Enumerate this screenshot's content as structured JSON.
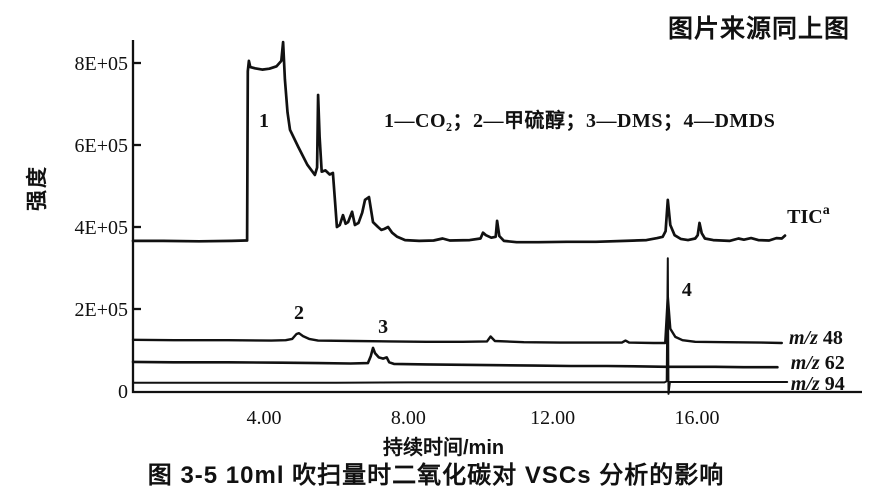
{
  "page": {
    "source_note": "图片来源同上图",
    "caption": "图 3-5  10ml 吹扫量时二氧化碳对 VSCs 分析的影响"
  },
  "chart_data": {
    "type": "line",
    "title": "图 3-5 10ml 吹扫量时二氧化碳对 VSCs 分析的影响",
    "xlabel": "持续时间/min",
    "ylabel": "强度",
    "x_unit": "min",
    "intensity_unit": "1E+05",
    "xlim": [
      0.37,
      20.57
    ],
    "ylim_in_1e5": [
      -0.1,
      8.8
    ],
    "grid": false,
    "legend_position": "top-center-inside",
    "legend_text": "1—CO₂；2—甲硫醇；3—DMS；4—DMDS",
    "legend_items": [
      {
        "number": "1",
        "compound": "CO₂"
      },
      {
        "number": "2",
        "compound": "甲硫醇"
      },
      {
        "number": "3",
        "compound": "DMS"
      },
      {
        "number": "4",
        "compound": "DMDS"
      }
    ],
    "y_ticks": [
      {
        "v": 0,
        "label": "0"
      },
      {
        "v": 2,
        "label": "2E+05"
      },
      {
        "v": 4,
        "label": "4E+05"
      },
      {
        "v": 6,
        "label": "6E+05"
      },
      {
        "v": 8,
        "label": "8E+05"
      }
    ],
    "x_ticks": [
      {
        "t": 4,
        "label": "4.00"
      },
      {
        "t": 8,
        "label": "8.00"
      },
      {
        "t": 12,
        "label": "12.00"
      },
      {
        "t": 16,
        "label": "16.00"
      }
    ],
    "peak_labels": [
      {
        "text": "1",
        "t": 4.0,
        "v": 6.44
      },
      {
        "text": "2",
        "t": 4.97,
        "v": 1.76
      },
      {
        "text": "3",
        "t": 7.3,
        "v": 1.41
      },
      {
        "text": "4",
        "t": 15.72,
        "v": 2.32
      }
    ],
    "series": [
      {
        "id": "tic",
        "name": "TIC",
        "label": "TIC",
        "label_sup": "a",
        "label_t": 18.5,
        "label_v": 4.1,
        "stroke_width": 2.7,
        "points": [
          [
            0.37,
            3.66
          ],
          [
            1.2,
            3.66
          ],
          [
            2.2,
            3.65
          ],
          [
            3.1,
            3.66
          ],
          [
            3.48,
            3.67
          ],
          [
            3.53,
            3.67
          ],
          [
            3.55,
            7.8
          ],
          [
            3.58,
            8.05
          ],
          [
            3.62,
            7.9
          ],
          [
            3.75,
            7.87
          ],
          [
            3.95,
            7.84
          ],
          [
            4.15,
            7.86
          ],
          [
            4.35,
            7.92
          ],
          [
            4.48,
            8.05
          ],
          [
            4.53,
            8.51
          ],
          [
            4.58,
            7.6
          ],
          [
            4.65,
            6.8
          ],
          [
            4.72,
            6.37
          ],
          [
            4.95,
            5.95
          ],
          [
            5.2,
            5.52
          ],
          [
            5.41,
            5.27
          ],
          [
            5.47,
            5.45
          ],
          [
            5.5,
            7.22
          ],
          [
            5.54,
            6.2
          ],
          [
            5.6,
            5.35
          ],
          [
            5.7,
            5.38
          ],
          [
            5.82,
            5.28
          ],
          [
            5.91,
            5.32
          ],
          [
            5.97,
            4.6
          ],
          [
            6.02,
            4.0
          ],
          [
            6.1,
            4.05
          ],
          [
            6.19,
            4.29
          ],
          [
            6.26,
            4.08
          ],
          [
            6.33,
            4.12
          ],
          [
            6.44,
            4.37
          ],
          [
            6.52,
            4.05
          ],
          [
            6.62,
            4.1
          ],
          [
            6.72,
            4.35
          ],
          [
            6.8,
            4.66
          ],
          [
            6.91,
            4.73
          ],
          [
            7.02,
            4.12
          ],
          [
            7.16,
            4.0
          ],
          [
            7.25,
            3.93
          ],
          [
            7.33,
            3.95
          ],
          [
            7.44,
            4.0
          ],
          [
            7.55,
            3.86
          ],
          [
            7.69,
            3.76
          ],
          [
            7.91,
            3.68
          ],
          [
            8.3,
            3.66
          ],
          [
            8.7,
            3.67
          ],
          [
            8.95,
            3.72
          ],
          [
            9.15,
            3.67
          ],
          [
            9.7,
            3.68
          ],
          [
            10.0,
            3.72
          ],
          [
            10.07,
            3.86
          ],
          [
            10.15,
            3.8
          ],
          [
            10.3,
            3.74
          ],
          [
            10.42,
            3.76
          ],
          [
            10.46,
            4.15
          ],
          [
            10.52,
            3.78
          ],
          [
            10.65,
            3.66
          ],
          [
            11.0,
            3.63
          ],
          [
            11.6,
            3.63
          ],
          [
            12.4,
            3.64
          ],
          [
            13.2,
            3.64
          ],
          [
            14.0,
            3.66
          ],
          [
            14.6,
            3.68
          ],
          [
            14.9,
            3.73
          ],
          [
            15.05,
            3.76
          ],
          [
            15.13,
            3.9
          ],
          [
            15.19,
            4.66
          ],
          [
            15.26,
            4.05
          ],
          [
            15.38,
            3.8
          ],
          [
            15.55,
            3.71
          ],
          [
            15.75,
            3.68
          ],
          [
            15.95,
            3.72
          ],
          [
            16.02,
            3.8
          ],
          [
            16.07,
            4.1
          ],
          [
            16.13,
            3.85
          ],
          [
            16.22,
            3.72
          ],
          [
            16.45,
            3.68
          ],
          [
            16.9,
            3.66
          ],
          [
            17.15,
            3.72
          ],
          [
            17.3,
            3.69
          ],
          [
            17.5,
            3.73
          ],
          [
            17.7,
            3.68
          ],
          [
            18.0,
            3.67
          ],
          [
            18.2,
            3.73
          ],
          [
            18.35,
            3.72
          ],
          [
            18.44,
            3.79
          ]
        ]
      },
      {
        "id": "mz48",
        "name": "m/z 48",
        "label_prefix": "m/z",
        "label_number": "48",
        "label_t": 18.55,
        "label_v": 1.15,
        "stroke_width": 2.4,
        "points": [
          [
            0.37,
            1.25
          ],
          [
            1.5,
            1.24
          ],
          [
            3.0,
            1.24
          ],
          [
            4.2,
            1.23
          ],
          [
            4.6,
            1.24
          ],
          [
            4.78,
            1.27
          ],
          [
            4.9,
            1.39
          ],
          [
            4.97,
            1.41
          ],
          [
            5.08,
            1.34
          ],
          [
            5.25,
            1.27
          ],
          [
            5.5,
            1.23
          ],
          [
            6.5,
            1.22
          ],
          [
            7.5,
            1.21
          ],
          [
            8.5,
            1.2
          ],
          [
            9.5,
            1.2
          ],
          [
            10.18,
            1.21
          ],
          [
            10.28,
            1.33
          ],
          [
            10.4,
            1.22
          ],
          [
            11.2,
            1.19
          ],
          [
            12.2,
            1.18
          ],
          [
            13.2,
            1.18
          ],
          [
            13.92,
            1.18
          ],
          [
            14.02,
            1.23
          ],
          [
            14.12,
            1.18
          ],
          [
            14.8,
            1.17
          ],
          [
            15.12,
            1.17
          ],
          [
            15.19,
            2.3
          ],
          [
            15.26,
            1.52
          ],
          [
            15.4,
            1.32
          ],
          [
            15.6,
            1.24
          ],
          [
            15.95,
            1.2
          ],
          [
            16.8,
            1.19
          ],
          [
            17.8,
            1.18
          ],
          [
            18.35,
            1.17
          ]
        ]
      },
      {
        "id": "mz62",
        "name": "m/z 62",
        "label_prefix": "m/z",
        "label_number": "62",
        "label_t": 18.6,
        "label_v": 0.54,
        "stroke_width": 2.6,
        "points": [
          [
            0.37,
            0.71
          ],
          [
            1.5,
            0.7
          ],
          [
            3.0,
            0.7
          ],
          [
            4.5,
            0.69
          ],
          [
            5.5,
            0.68
          ],
          [
            6.4,
            0.67
          ],
          [
            6.88,
            0.68
          ],
          [
            6.96,
            0.85
          ],
          [
            7.02,
            1.05
          ],
          [
            7.08,
            0.92
          ],
          [
            7.18,
            0.82
          ],
          [
            7.3,
            0.79
          ],
          [
            7.4,
            0.82
          ],
          [
            7.47,
            0.7
          ],
          [
            7.6,
            0.66
          ],
          [
            8.5,
            0.65
          ],
          [
            9.5,
            0.64
          ],
          [
            10.5,
            0.63
          ],
          [
            11.5,
            0.62
          ],
          [
            12.5,
            0.61
          ],
          [
            13.5,
            0.61
          ],
          [
            14.5,
            0.6
          ],
          [
            15.14,
            0.59
          ],
          [
            15.5,
            0.59
          ],
          [
            16.5,
            0.59
          ],
          [
            17.3,
            0.58
          ],
          [
            18.23,
            0.58
          ]
        ]
      },
      {
        "id": "mz94",
        "name": "m/z 94",
        "label_prefix": "m/z",
        "label_number": "94",
        "label_t": 18.6,
        "label_v": 0.02,
        "stroke_width": 2.0,
        "points": [
          [
            0.37,
            0.2
          ],
          [
            2.0,
            0.2
          ],
          [
            4.0,
            0.2
          ],
          [
            6.0,
            0.2
          ],
          [
            8.0,
            0.21
          ],
          [
            10.0,
            0.21
          ],
          [
            12.0,
            0.21
          ],
          [
            14.0,
            0.21
          ],
          [
            15.1,
            0.21
          ],
          [
            15.16,
            0.24
          ],
          [
            15.19,
            3.24
          ],
          [
            15.21,
            -0.07
          ],
          [
            15.25,
            0.22
          ],
          [
            16.0,
            0.22
          ],
          [
            17.0,
            0.22
          ],
          [
            18.5,
            0.22
          ]
        ]
      }
    ]
  }
}
